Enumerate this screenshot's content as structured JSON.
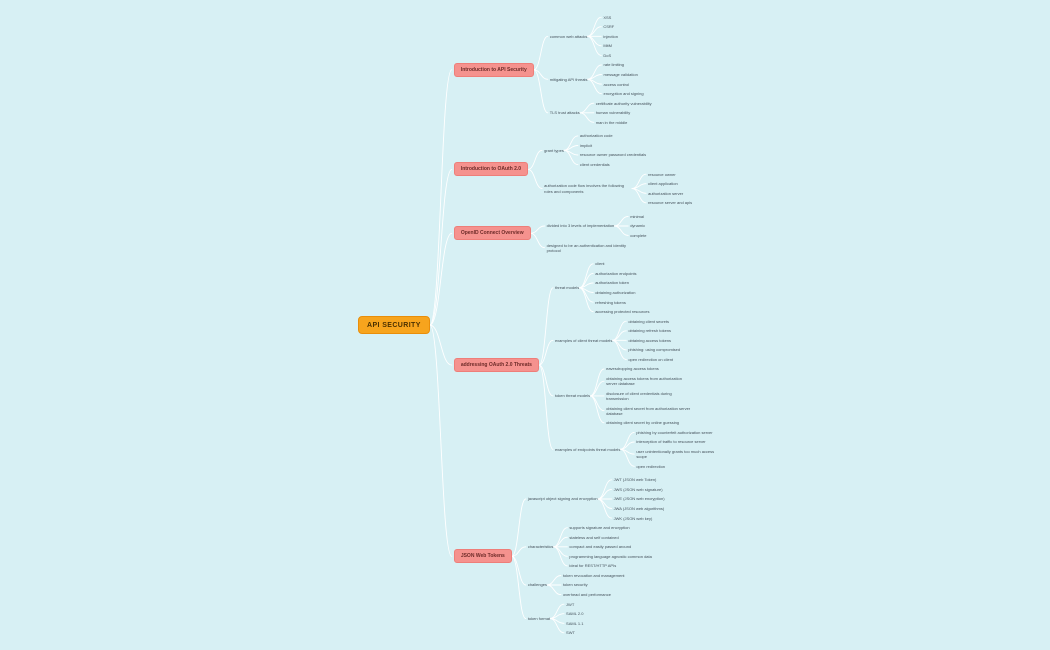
{
  "colors": {
    "background": "#d7f0f4",
    "edge": "#ffffff",
    "root_fill": "#f7a41d",
    "root_border": "#e98e0a",
    "root_text": "#4a3000",
    "topic_fill": "#f5928e",
    "topic_border": "#ee7e79",
    "topic_text": "#6d2b28",
    "text_color": "#44505a"
  },
  "root": {
    "label": "API SECURITY",
    "children": [
      {
        "label": "Introduction to API Security",
        "children": [
          {
            "label": "common web attacks",
            "children": [
              {
                "label": "XSS"
              },
              {
                "label": "CSRF"
              },
              {
                "label": "injection"
              },
              {
                "label": "MitM"
              },
              {
                "label": "DoS"
              }
            ]
          },
          {
            "label": "mitigating API threats",
            "children": [
              {
                "label": "rate limiting"
              },
              {
                "label": "message validation"
              },
              {
                "label": "access control"
              },
              {
                "label": "encryption and signing"
              }
            ]
          },
          {
            "label": "TLS trust attacks",
            "children": [
              {
                "label": "certificate authority vulnerability"
              },
              {
                "label": "human vulnerability"
              },
              {
                "label": "man in the middle"
              }
            ]
          }
        ]
      },
      {
        "label": "Introduction to OAuth 2.0",
        "children": [
          {
            "label": "grant types",
            "children": [
              {
                "label": "authorization code"
              },
              {
                "label": "implicit"
              },
              {
                "label": "resource owner password credentials"
              },
              {
                "label": "client credentials"
              }
            ]
          },
          {
            "label": "authorization code flow involves the following roles and components",
            "children": [
              {
                "label": "resource owner"
              },
              {
                "label": "client application"
              },
              {
                "label": "authorization server"
              },
              {
                "label": "resource server and apis"
              }
            ]
          }
        ]
      },
      {
        "label": "OpenID Connect Overview",
        "children": [
          {
            "label": "divided into 3 levels of implementation",
            "children": [
              {
                "label": "minimal"
              },
              {
                "label": "dynamic"
              },
              {
                "label": "complete"
              }
            ]
          },
          {
            "label": "designed to be an authentication and identity protocol"
          }
        ]
      },
      {
        "label": "addressing OAuth 2.0 Threats",
        "children": [
          {
            "label": "threat models",
            "children": [
              {
                "label": "client"
              },
              {
                "label": "authorization endpoints"
              },
              {
                "label": "authorization token"
              },
              {
                "label": "obtaining authorization"
              },
              {
                "label": "refreshing tokens"
              },
              {
                "label": "accessing protected resources"
              }
            ]
          },
          {
            "label": "examples of client threat models",
            "children": [
              {
                "label": "obtaining client secrets"
              },
              {
                "label": "obtaining refresh tokens"
              },
              {
                "label": "obtaining access tokens"
              },
              {
                "label": "phishing: using compromised"
              },
              {
                "label": "open redirection on client"
              }
            ]
          },
          {
            "label": "token threat models",
            "children": [
              {
                "label": "eavesdropping access tokens"
              },
              {
                "label": "obtaining access tokens from authorization server database"
              },
              {
                "label": "disclosure of client credentials during transmission"
              },
              {
                "label": "obtaining client secret from authorization server database"
              },
              {
                "label": "obtaining client secret by online guessing"
              }
            ]
          },
          {
            "label": "examples of endpoints threat models",
            "children": [
              {
                "label": "phishing by counterfeit authorization server"
              },
              {
                "label": "interception of traffic to resource server"
              },
              {
                "label": "user unintentionally grants too much access scope"
              },
              {
                "label": "open redirection"
              }
            ]
          }
        ]
      },
      {
        "label": "JSON Web Tokens",
        "children": [
          {
            "label": "javascript object signing and encryption",
            "children": [
              {
                "label": "JWT (JSON web Token)"
              },
              {
                "label": "JWS (JSON web signature)"
              },
              {
                "label": "JWE (JSON web encryption)"
              },
              {
                "label": "JWA (JSON web algorithms)"
              },
              {
                "label": "JWK (JSON web key)"
              }
            ]
          },
          {
            "label": "characteristics",
            "children": [
              {
                "label": "supports signature and encryption"
              },
              {
                "label": "stateless and self contained"
              },
              {
                "label": "compact and easily passed around"
              },
              {
                "label": "programming language agnostic common data"
              },
              {
                "label": "ideal for REST/HTTP APIs"
              }
            ]
          },
          {
            "label": "challenges",
            "children": [
              {
                "label": "token revocation and management"
              },
              {
                "label": "token security"
              },
              {
                "label": "overhead and performance"
              }
            ]
          },
          {
            "label": "token format",
            "children": [
              {
                "label": "JWT"
              },
              {
                "label": "SAML 2.0"
              },
              {
                "label": "SAML 1.1"
              },
              {
                "label": "SWT"
              }
            ]
          }
        ]
      }
    ]
  }
}
